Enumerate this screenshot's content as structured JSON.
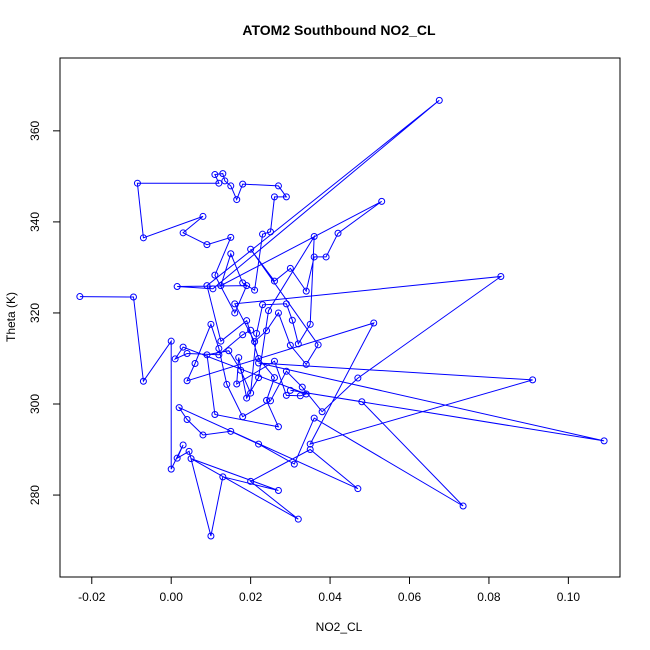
{
  "chart_data": {
    "type": "line",
    "title": "ATOM2 Southbound NO2_CL",
    "xlabel": "NO2_CL",
    "ylabel": "Theta (K)",
    "xlim": [
      -0.028,
      0.113
    ],
    "ylim": [
      262,
      376
    ],
    "xticks": [
      -0.02,
      0.0,
      0.02,
      0.04,
      0.06,
      0.08,
      0.1
    ],
    "xtick_labels": [
      "-0.02",
      "0.00",
      "0.02",
      "0.04",
      "0.06",
      "0.08",
      "0.10"
    ],
    "yticks": [
      280,
      300,
      320,
      340,
      360
    ],
    "ytick_labels": [
      "280",
      "300",
      "320",
      "340",
      "360"
    ],
    "grid": false,
    "legend": "none",
    "series": [
      {
        "color": "#0000ff",
        "marker": "open-circle",
        "points": [
          [
            -0.023,
            323.6
          ],
          [
            -0.0095,
            323.5
          ],
          [
            -0.007,
            305.0
          ],
          [
            0.0,
            313.8
          ],
          [
            0.0,
            285.7
          ],
          [
            0.003,
            291.0
          ],
          [
            0.0015,
            288.1
          ],
          [
            0.0045,
            289.6
          ],
          [
            0.01,
            271.0
          ],
          [
            0.013,
            284.0
          ],
          [
            0.027,
            281.0
          ],
          [
            0.005,
            288.0
          ],
          [
            0.032,
            274.7
          ],
          [
            0.02,
            283.0
          ],
          [
            0.035,
            290.0
          ],
          [
            0.047,
            281.4
          ],
          [
            0.002,
            299.2
          ],
          [
            0.004,
            296.6
          ],
          [
            0.008,
            293.2
          ],
          [
            0.015,
            294.0
          ],
          [
            0.022,
            291.2
          ],
          [
            0.031,
            286.8
          ],
          [
            0.036,
            296.9
          ],
          [
            0.0735,
            277.6
          ],
          [
            0.048,
            300.5
          ],
          [
            0.03,
            303.0
          ],
          [
            0.109,
            291.9
          ],
          [
            0.022,
            309.0
          ],
          [
            0.091,
            305.3
          ],
          [
            0.035,
            291.2
          ],
          [
            0.051,
            317.8
          ],
          [
            0.004,
            305.1
          ],
          [
            0.006,
            308.9
          ],
          [
            0.01,
            317.5
          ],
          [
            0.012,
            312.2
          ],
          [
            0.014,
            304.3
          ],
          [
            0.018,
            297.2
          ],
          [
            0.025,
            300.7
          ],
          [
            0.029,
            307.2
          ],
          [
            0.033,
            303.7
          ],
          [
            0.038,
            298.3
          ],
          [
            0.047,
            305.7
          ],
          [
            0.083,
            328.0
          ],
          [
            0.016,
            322.0
          ],
          [
            0.021,
            313.7
          ],
          [
            0.024,
            316.1
          ],
          [
            0.027,
            320.0
          ],
          [
            0.03,
            312.9
          ],
          [
            0.034,
            308.7
          ],
          [
            0.037,
            313.0
          ],
          [
            0.02,
            334.0
          ],
          [
            0.026,
            327.0
          ],
          [
            0.03,
            329.8
          ],
          [
            0.034,
            324.8
          ],
          [
            0.036,
            332.3
          ],
          [
            0.039,
            332.3
          ],
          [
            0.042,
            337.5
          ],
          [
            0.053,
            344.5
          ],
          [
            0.0125,
            326.0
          ],
          [
            0.015,
            333.0
          ],
          [
            0.018,
            326.6
          ],
          [
            0.021,
            325.0
          ],
          [
            0.023,
            337.3
          ],
          [
            0.025,
            337.8
          ],
          [
            0.026,
            345.5
          ],
          [
            0.029,
            345.5
          ],
          [
            0.027,
            347.9
          ],
          [
            0.018,
            348.3
          ],
          [
            0.0165,
            344.9
          ],
          [
            0.015,
            347.9
          ],
          [
            0.0135,
            349.0
          ],
          [
            0.013,
            350.6
          ],
          [
            0.011,
            350.4
          ],
          [
            0.012,
            348.5
          ],
          [
            -0.0085,
            348.5
          ],
          [
            -0.007,
            336.5
          ],
          [
            0.008,
            341.2
          ],
          [
            0.003,
            337.6
          ],
          [
            0.009,
            335.0
          ],
          [
            0.015,
            336.6
          ],
          [
            0.011,
            328.3
          ],
          [
            0.016,
            320.0
          ],
          [
            0.019,
            326.0
          ],
          [
            0.0015,
            325.8
          ],
          [
            0.0105,
            325.3
          ],
          [
            0.0675,
            366.7
          ],
          [
            0.009,
            326.0
          ],
          [
            0.0125,
            313.8
          ],
          [
            0.019,
            318.3
          ],
          [
            0.022,
            310.0
          ],
          [
            0.026,
            305.8
          ],
          [
            0.024,
            300.8
          ],
          [
            0.027,
            295.0
          ],
          [
            0.011,
            297.7
          ],
          [
            0.009,
            310.8
          ],
          [
            0.0145,
            311.7
          ],
          [
            0.0175,
            307.4
          ],
          [
            0.02,
            302.4
          ],
          [
            0.0215,
            315.5
          ],
          [
            0.023,
            321.8
          ],
          [
            0.029,
            322.0
          ],
          [
            0.0305,
            318.4
          ],
          [
            0.032,
            313.2
          ],
          [
            0.035,
            317.5
          ],
          [
            0.036,
            336.8
          ],
          [
            0.0245,
            320.5
          ],
          [
            0.022,
            305.8
          ],
          [
            0.019,
            301.3
          ],
          [
            0.017,
            310.2
          ],
          [
            0.0165,
            304.4
          ],
          [
            0.026,
            309.4
          ],
          [
            0.029,
            301.9
          ],
          [
            0.0325,
            301.8
          ],
          [
            0.034,
            302.2
          ],
          [
            0.003,
            312.5
          ],
          [
            0.001,
            309.9
          ],
          [
            0.004,
            311.1
          ],
          [
            0.012,
            310.8
          ],
          [
            0.018,
            315.2
          ],
          [
            0.02,
            316.2
          ]
        ]
      }
    ]
  }
}
